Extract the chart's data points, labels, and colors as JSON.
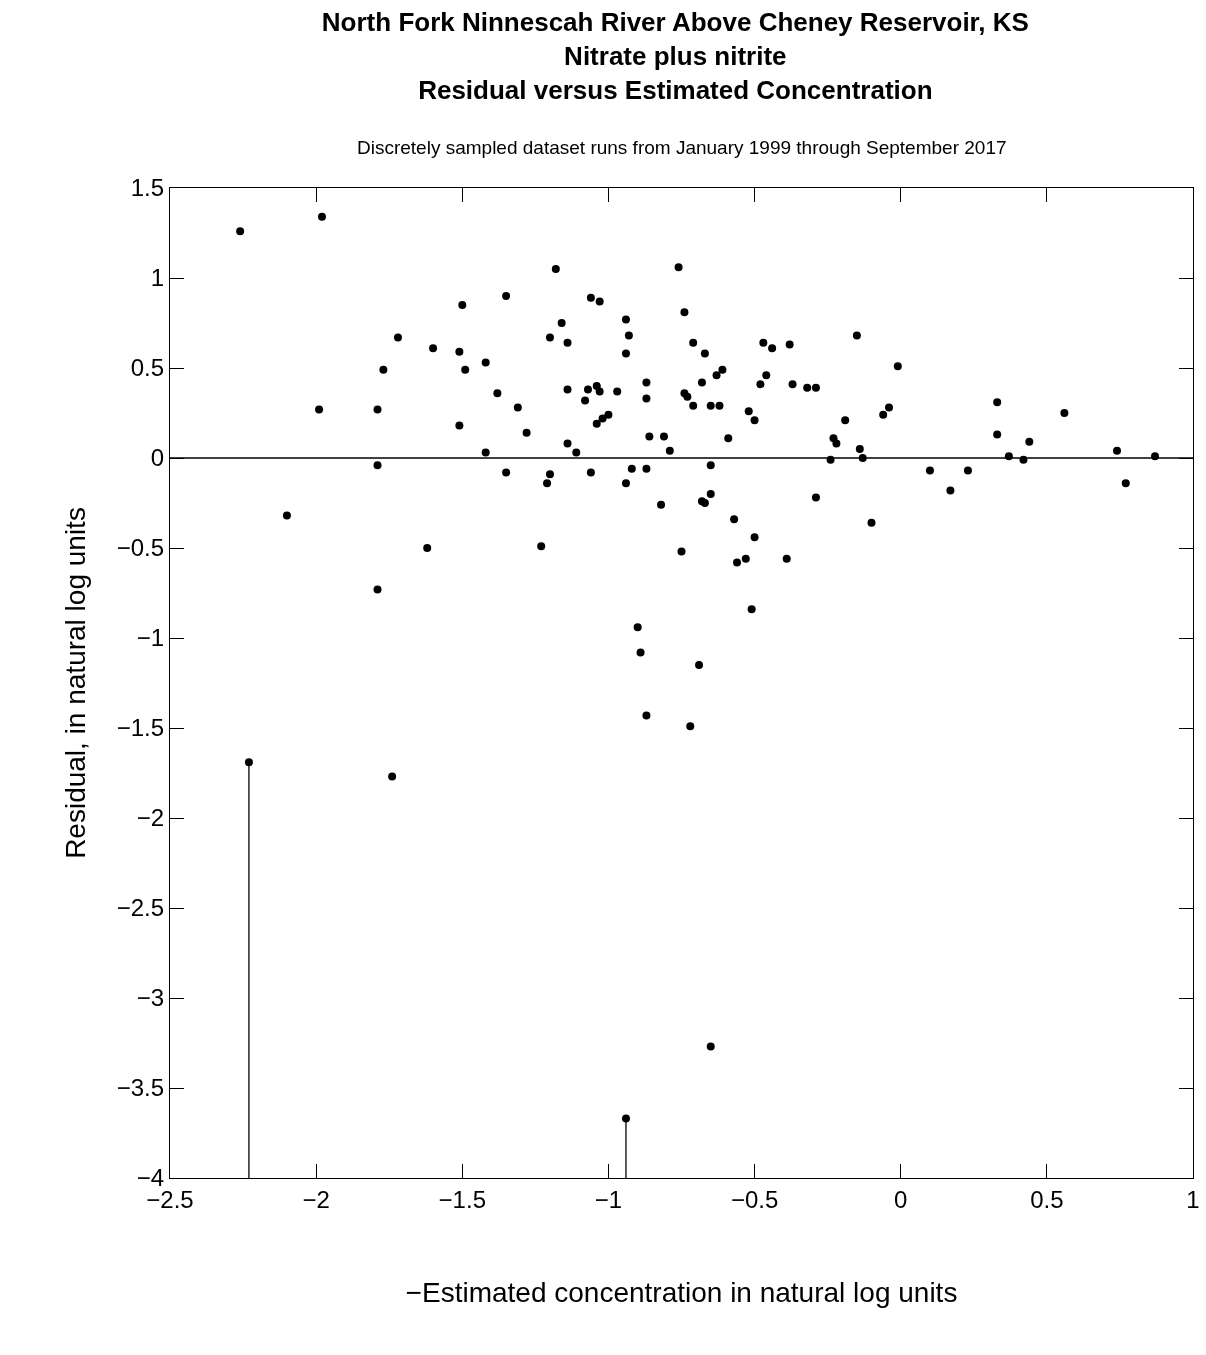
{
  "chart_data": {
    "type": "scatter",
    "title": "North Fork Ninnescah River Above Cheney Reservoir, KS\nNitrate plus nitrite\nResidual versus Estimated Concentration",
    "subtitle": "Discretely sampled dataset runs from January 1999 through September 2017",
    "xlabel": "−Estimated concentration in natural log units",
    "ylabel": "Residual, in natural log units",
    "xlim": [
      -2.5,
      1
    ],
    "xticks": [
      -2.5,
      -2,
      -1.5,
      -1,
      -0.5,
      0,
      0.5,
      1
    ],
    "ylim": [
      -4,
      1.5
    ],
    "yticks": [
      -4,
      -3.5,
      -3,
      -2.5,
      -2,
      -1.5,
      -1,
      -0.5,
      0,
      0.5,
      1,
      1.5
    ],
    "grid": false,
    "marker": "circle",
    "ref_lines": [
      {
        "axis": "y",
        "value": 0,
        "color": "#000000"
      }
    ],
    "series": [
      {
        "color": "#000000",
        "x": [
          -2.26,
          -1.98,
          -1.99,
          -2.1,
          -1.79,
          -1.77,
          -1.72,
          -1.79,
          -1.79,
          -1.74,
          -1.62,
          -1.6,
          -1.51,
          -1.5,
          -1.49,
          -1.51,
          -1.42,
          -1.42,
          -1.38,
          -1.35,
          -1.35,
          -1.31,
          -1.28,
          -1.23,
          -1.21,
          -1.2,
          -1.2,
          -1.18,
          -1.16,
          -1.14,
          -1.14,
          -1.14,
          -1.11,
          -1.08,
          -1.06,
          -1.06,
          -1.07,
          -1.04,
          -1.04,
          -1.03,
          -1.03,
          -1.02,
          -1.0,
          -0.97,
          -0.94,
          -0.93,
          -0.94,
          -0.94,
          -0.92,
          -0.9,
          -0.89,
          -0.87,
          -0.87,
          -0.87,
          -0.87,
          -0.86,
          -0.82,
          -0.81,
          -0.79,
          -0.76,
          -0.75,
          -0.74,
          -0.74,
          -0.73,
          -0.71,
          -0.71,
          -0.72,
          -0.69,
          -0.68,
          -0.68,
          -0.67,
          -0.67,
          -0.65,
          -0.65,
          -0.65,
          -0.65,
          -0.63,
          -0.61,
          -0.62,
          -0.59,
          -0.57,
          -0.56,
          -0.53,
          -0.52,
          -0.51,
          -0.5,
          -0.5,
          -0.48,
          -0.47,
          -0.46,
          -0.44,
          -0.39,
          -0.38,
          -0.37,
          -0.32,
          -0.29,
          -0.29,
          -0.24,
          -0.23,
          -0.22,
          -0.19,
          -0.15,
          -0.14,
          -0.13,
          -0.1,
          -0.06,
          -0.04,
          -0.01,
          0.1,
          0.17,
          0.23,
          0.33,
          0.33,
          0.37,
          0.42,
          0.44,
          0.56,
          0.74,
          0.77,
          0.87
        ],
        "values": [
          1.26,
          1.34,
          0.27,
          -0.32,
          0.27,
          0.49,
          0.67,
          -0.04,
          -0.73,
          -1.77,
          -0.5,
          0.61,
          0.59,
          0.85,
          0.49,
          0.18,
          0.53,
          0.03,
          0.36,
          0.9,
          -0.08,
          0.28,
          0.14,
          -0.49,
          -0.14,
          -0.09,
          0.67,
          1.05,
          0.75,
          0.64,
          0.38,
          0.08,
          0.03,
          0.32,
          -0.08,
          0.89,
          0.38,
          0.4,
          0.19,
          0.87,
          0.37,
          0.22,
          0.24,
          0.37,
          0.77,
          0.68,
          0.58,
          -0.14,
          -0.06,
          -0.94,
          -1.08,
          0.42,
          0.33,
          -0.06,
          -1.43,
          0.12,
          -0.26,
          0.12,
          0.04,
          1.06,
          -0.52,
          0.36,
          0.81,
          0.34,
          0.64,
          0.29,
          -1.49,
          -1.15,
          0.42,
          -0.24,
          -0.25,
          0.58,
          0.29,
          -0.04,
          -0.2,
          -3.27,
          0.46,
          0.49,
          0.29,
          0.11,
          -0.34,
          -0.58,
          -0.56,
          0.26,
          -0.84,
          -0.44,
          0.21,
          0.41,
          0.64,
          0.46,
          0.61,
          -0.56,
          0.63,
          0.41,
          0.39,
          0.39,
          -0.22,
          -0.01,
          0.11,
          0.08,
          0.21,
          0.68,
          0.05,
          0.0,
          -0.36,
          0.24,
          0.28,
          0.51,
          -0.07,
          -0.18,
          -0.07,
          0.13,
          0.31,
          0.01,
          -0.01,
          0.09,
          0.25,
          0.04,
          -0.14,
          0.01
        ]
      },
      {
        "color": "#000000",
        "x": [
          -2.23,
          -0.94
        ],
        "values": [
          -1.69,
          -3.67
        ],
        "errors": [
          [
            -4,
            -1.69
          ],
          [
            -4,
            -3.67
          ]
        ]
      }
    ]
  }
}
